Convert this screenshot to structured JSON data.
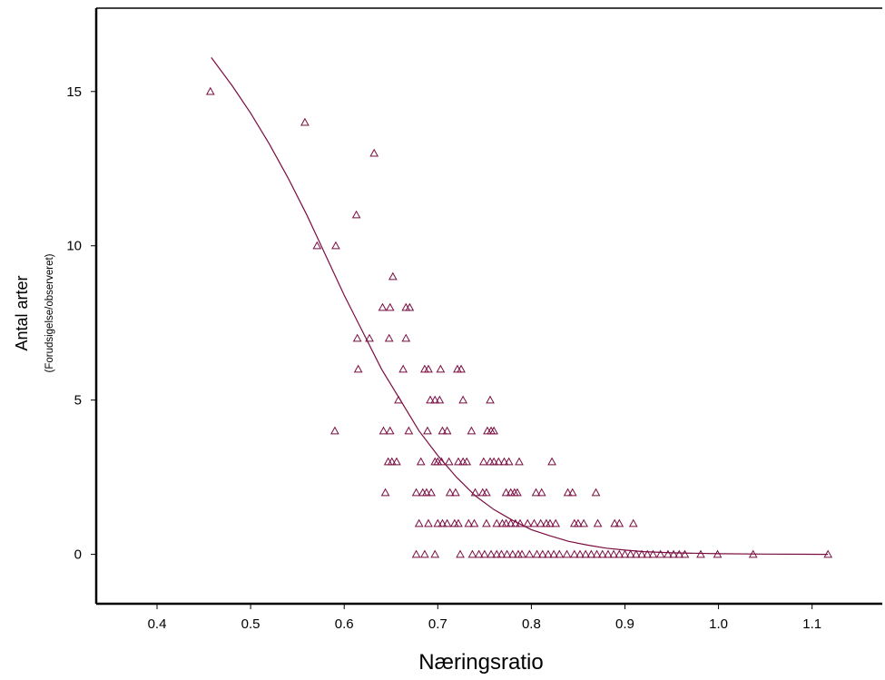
{
  "chart_data": {
    "type": "scatter",
    "title": "",
    "xlabel": "Næringsratio",
    "ylabel": "Antal arter",
    "ylabel_sub": "(Forudsigelse/observeret)",
    "xlim": [
      0.335,
      1.175
    ],
    "ylim": [
      -1.6,
      17.7
    ],
    "xticks": [
      "0.4",
      "0.5",
      "0.6",
      "0.7",
      "0.8",
      "0.9",
      "1.0",
      "1.1"
    ],
    "yticks": [
      "0",
      "5",
      "10",
      "15"
    ],
    "grid": false,
    "legend": "none",
    "colors": {
      "marker": "#7a0c40",
      "curve": "#7a0c40",
      "axis": "#000000"
    },
    "series": [
      {
        "kind": "points",
        "marker": "triangle-open",
        "points": [
          [
            0.457,
            15
          ],
          [
            0.558,
            14
          ],
          [
            0.632,
            13
          ],
          [
            0.613,
            11
          ],
          [
            0.571,
            10
          ],
          [
            0.591,
            10
          ],
          [
            0.652,
            9
          ],
          [
            0.641,
            8
          ],
          [
            0.649,
            8
          ],
          [
            0.666,
            8
          ],
          [
            0.67,
            8
          ],
          [
            0.614,
            7
          ],
          [
            0.627,
            7
          ],
          [
            0.648,
            7
          ],
          [
            0.666,
            7
          ],
          [
            0.615,
            6
          ],
          [
            0.663,
            6
          ],
          [
            0.686,
            6
          ],
          [
            0.69,
            6
          ],
          [
            0.703,
            6
          ],
          [
            0.721,
            6
          ],
          [
            0.725,
            6
          ],
          [
            0.658,
            5
          ],
          [
            0.692,
            5
          ],
          [
            0.697,
            5
          ],
          [
            0.702,
            5
          ],
          [
            0.727,
            5
          ],
          [
            0.756,
            5
          ],
          [
            0.59,
            4
          ],
          [
            0.642,
            4
          ],
          [
            0.649,
            4
          ],
          [
            0.669,
            4
          ],
          [
            0.689,
            4
          ],
          [
            0.705,
            4
          ],
          [
            0.71,
            4
          ],
          [
            0.736,
            4
          ],
          [
            0.753,
            4
          ],
          [
            0.757,
            4
          ],
          [
            0.76,
            4
          ],
          [
            0.647,
            3
          ],
          [
            0.651,
            3
          ],
          [
            0.656,
            3
          ],
          [
            0.682,
            3
          ],
          [
            0.697,
            3
          ],
          [
            0.7,
            3
          ],
          [
            0.704,
            3
          ],
          [
            0.712,
            3
          ],
          [
            0.722,
            3
          ],
          [
            0.727,
            3
          ],
          [
            0.731,
            3
          ],
          [
            0.749,
            3
          ],
          [
            0.756,
            3
          ],
          [
            0.76,
            3
          ],
          [
            0.765,
            3
          ],
          [
            0.771,
            3
          ],
          [
            0.776,
            3
          ],
          [
            0.787,
            3
          ],
          [
            0.822,
            3
          ],
          [
            0.644,
            2
          ],
          [
            0.677,
            2
          ],
          [
            0.684,
            2
          ],
          [
            0.688,
            2
          ],
          [
            0.693,
            2
          ],
          [
            0.713,
            2
          ],
          [
            0.719,
            2
          ],
          [
            0.74,
            2
          ],
          [
            0.748,
            2
          ],
          [
            0.752,
            2
          ],
          [
            0.773,
            2
          ],
          [
            0.778,
            2
          ],
          [
            0.782,
            2
          ],
          [
            0.785,
            2
          ],
          [
            0.805,
            2
          ],
          [
            0.811,
            2
          ],
          [
            0.839,
            2
          ],
          [
            0.844,
            2
          ],
          [
            0.869,
            2
          ],
          [
            0.68,
            1
          ],
          [
            0.69,
            1
          ],
          [
            0.7,
            1
          ],
          [
            0.705,
            1
          ],
          [
            0.71,
            1
          ],
          [
            0.718,
            1
          ],
          [
            0.722,
            1
          ],
          [
            0.733,
            1
          ],
          [
            0.739,
            1
          ],
          [
            0.752,
            1
          ],
          [
            0.763,
            1
          ],
          [
            0.769,
            1
          ],
          [
            0.773,
            1
          ],
          [
            0.778,
            1
          ],
          [
            0.783,
            1
          ],
          [
            0.788,
            1
          ],
          [
            0.796,
            1
          ],
          [
            0.803,
            1
          ],
          [
            0.81,
            1
          ],
          [
            0.816,
            1
          ],
          [
            0.82,
            1
          ],
          [
            0.826,
            1
          ],
          [
            0.846,
            1
          ],
          [
            0.85,
            1
          ],
          [
            0.856,
            1
          ],
          [
            0.871,
            1
          ],
          [
            0.889,
            1
          ],
          [
            0.894,
            1
          ],
          [
            0.909,
            1
          ],
          [
            0.677,
            0
          ],
          [
            0.686,
            0
          ],
          [
            0.697,
            0
          ],
          [
            0.724,
            0
          ],
          [
            0.737,
            0
          ],
          [
            0.744,
            0
          ],
          [
            0.75,
            0
          ],
          [
            0.757,
            0
          ],
          [
            0.763,
            0
          ],
          [
            0.768,
            0
          ],
          [
            0.774,
            0
          ],
          [
            0.78,
            0
          ],
          [
            0.786,
            0
          ],
          [
            0.79,
            0
          ],
          [
            0.798,
            0
          ],
          [
            0.806,
            0
          ],
          [
            0.812,
            0
          ],
          [
            0.818,
            0
          ],
          [
            0.824,
            0
          ],
          [
            0.83,
            0
          ],
          [
            0.838,
            0
          ],
          [
            0.846,
            0
          ],
          [
            0.852,
            0
          ],
          [
            0.858,
            0
          ],
          [
            0.864,
            0
          ],
          [
            0.87,
            0
          ],
          [
            0.876,
            0
          ],
          [
            0.882,
            0
          ],
          [
            0.888,
            0
          ],
          [
            0.894,
            0
          ],
          [
            0.9,
            0
          ],
          [
            0.906,
            0
          ],
          [
            0.912,
            0
          ],
          [
            0.918,
            0
          ],
          [
            0.924,
            0
          ],
          [
            0.93,
            0
          ],
          [
            0.938,
            0
          ],
          [
            0.946,
            0
          ],
          [
            0.952,
            0
          ],
          [
            0.958,
            0
          ],
          [
            0.964,
            0
          ],
          [
            0.981,
            0
          ],
          [
            0.999,
            0
          ],
          [
            1.037,
            0
          ],
          [
            1.117,
            0
          ]
        ]
      },
      {
        "kind": "curve",
        "points": [
          [
            0.458,
            16.1
          ],
          [
            0.48,
            15.2
          ],
          [
            0.5,
            14.3
          ],
          [
            0.52,
            13.3
          ],
          [
            0.54,
            12.2
          ],
          [
            0.56,
            11.0
          ],
          [
            0.58,
            9.7
          ],
          [
            0.6,
            8.4
          ],
          [
            0.62,
            7.2
          ],
          [
            0.64,
            6.0
          ],
          [
            0.66,
            5.0
          ],
          [
            0.68,
            4.0
          ],
          [
            0.7,
            3.2
          ],
          [
            0.72,
            2.5
          ],
          [
            0.74,
            1.9
          ],
          [
            0.76,
            1.45
          ],
          [
            0.78,
            1.1
          ],
          [
            0.8,
            0.8
          ],
          [
            0.82,
            0.6
          ],
          [
            0.84,
            0.42
          ],
          [
            0.86,
            0.3
          ],
          [
            0.88,
            0.2
          ],
          [
            0.9,
            0.14
          ],
          [
            0.92,
            0.09
          ],
          [
            0.95,
            0.05
          ],
          [
            1.0,
            0.02
          ],
          [
            1.05,
            0.01
          ],
          [
            1.117,
            0.0
          ]
        ]
      }
    ]
  }
}
